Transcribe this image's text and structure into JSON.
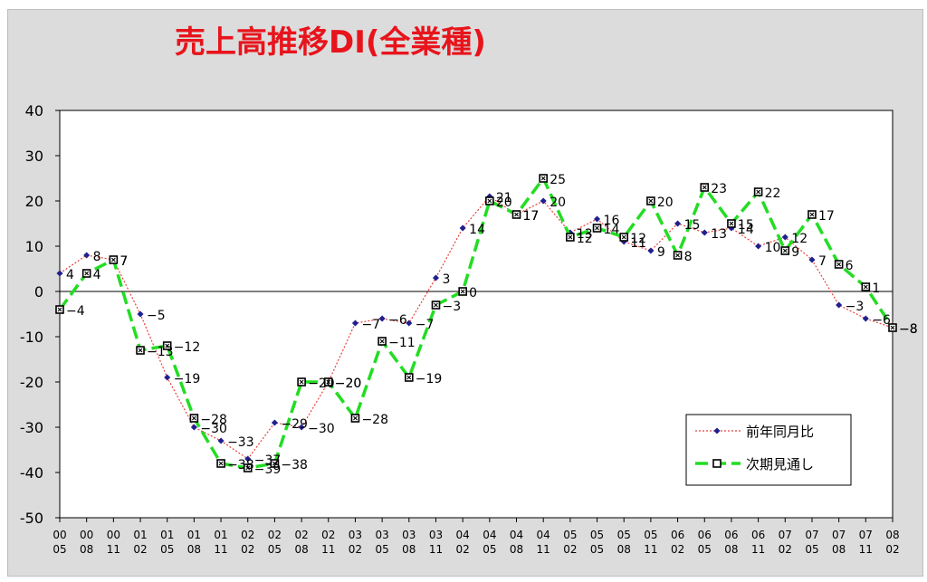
{
  "chart_data": {
    "type": "line",
    "title": "売上高推移DI(全業種)",
    "xlabel": "",
    "ylabel": "",
    "ylim": [
      -50,
      40
    ],
    "yticks": [
      "40",
      "30",
      "20",
      "10",
      "0",
      "-10",
      "-20",
      "-30",
      "-40",
      "-50"
    ],
    "x_years": [
      "00",
      "00",
      "00",
      "01",
      "01",
      "01",
      "01",
      "02",
      "02",
      "02",
      "02",
      "03",
      "03",
      "03",
      "03",
      "04",
      "04",
      "04",
      "04",
      "05",
      "05",
      "05",
      "05",
      "06",
      "06",
      "06",
      "06",
      "07",
      "07",
      "07",
      "07",
      "08"
    ],
    "x_months": [
      "05",
      "08",
      "11",
      "02",
      "05",
      "08",
      "11",
      "02",
      "05",
      "08",
      "11",
      "02",
      "05",
      "08",
      "11",
      "02",
      "05",
      "08",
      "11",
      "02",
      "05",
      "08",
      "11",
      "02",
      "05",
      "08",
      "11",
      "02",
      "05",
      "08",
      "11",
      "02"
    ],
    "grid": "none",
    "legend_position": "bottom-right",
    "colors": {
      "series1": "#e8413c",
      "marker1": "#1f1f8f",
      "series2": "#22dd22",
      "marker2": "#000000"
    },
    "series": [
      {
        "name": "前年同月比",
        "values": [
          4,
          8,
          7,
          -5,
          -19,
          -30,
          -33,
          -37,
          -29,
          -30,
          -20,
          -7,
          -6,
          -7,
          3,
          14,
          21,
          17,
          20,
          13,
          16,
          11,
          9,
          15,
          13,
          14,
          10,
          12,
          7,
          -3,
          -6,
          -8
        ]
      },
      {
        "name": "次期見通し",
        "values": [
          -4,
          4,
          7,
          -13,
          -12,
          -28,
          -38,
          -39,
          -38,
          -20,
          -20,
          -28,
          -11,
          -19,
          -3,
          0,
          20,
          17,
          25,
          12,
          14,
          12,
          20,
          8,
          23,
          15,
          22,
          9,
          17,
          6,
          1,
          -8
        ]
      }
    ]
  }
}
